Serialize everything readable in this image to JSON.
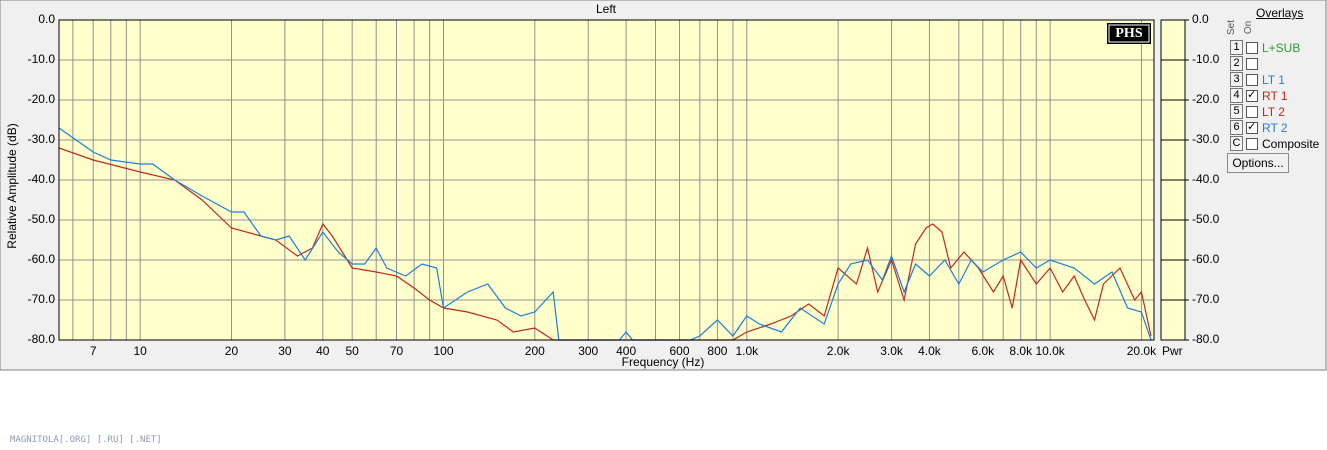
{
  "chart_data": {
    "type": "line",
    "title": "Left",
    "xlabel": "Frequency (Hz)",
    "ylabel": "Relative Amplitude (dB)",
    "xscale": "log",
    "xlim": [
      5.4,
      22000
    ],
    "ylim": [
      -80,
      0
    ],
    "grid": true,
    "xticks": [
      {
        "value": 6,
        "label": null
      },
      7,
      {
        "value": 8,
        "label": null
      },
      {
        "value": 9,
        "label": null
      },
      10,
      20,
      30,
      40,
      50,
      {
        "value": 60,
        "label": null
      },
      70,
      {
        "value": 80,
        "label": null
      },
      {
        "value": 90,
        "label": null
      },
      100,
      200,
      300,
      400,
      {
        "value": 500,
        "label": null
      },
      600,
      {
        "value": 700,
        "label": null
      },
      800,
      {
        "value": 900,
        "label": null
      },
      {
        "value": 1000,
        "label": "1.0k"
      },
      {
        "value": 2000,
        "label": "2.0k"
      },
      {
        "value": 3000,
        "label": "3.0k"
      },
      {
        "value": 4000,
        "label": "4.0k"
      },
      {
        "value": 5000,
        "label": null
      },
      {
        "value": 6000,
        "label": "6.0k"
      },
      {
        "value": 7000,
        "label": null
      },
      {
        "value": 8000,
        "label": "8.0k"
      },
      {
        "value": 9000,
        "label": null
      },
      {
        "value": 10000,
        "label": "10.0k"
      },
      {
        "value": 20000,
        "label": "20.0k"
      }
    ],
    "yticks": [
      {
        "value": 0,
        "label": "0.0"
      },
      {
        "value": -10,
        "label": "-10.0"
      },
      {
        "value": -20,
        "label": "-20.0"
      },
      {
        "value": -30,
        "label": "-30.0"
      },
      {
        "value": -40,
        "label": "-40.0"
      },
      {
        "value": -50,
        "label": "-50.0"
      },
      {
        "value": -60,
        "label": "-60.0"
      },
      {
        "value": -70,
        "label": "-70.0"
      },
      {
        "value": -80,
        "label": "-80.0"
      }
    ],
    "right_axis_label": "Pwr",
    "logo": "PHS",
    "series": [
      {
        "name": "RT 1",
        "color": "#c0281c",
        "x": [
          5.4,
          7,
          10,
          13,
          16,
          20,
          25,
          28,
          33,
          37,
          40,
          43,
          50,
          60,
          70,
          80,
          90,
          100,
          120,
          150,
          170,
          200,
          230,
          700,
          900,
          1000,
          1200,
          1400,
          1600,
          1800,
          2000,
          2300,
          2500,
          2700,
          3000,
          3300,
          3600,
          3900,
          4100,
          4400,
          4700,
          5200,
          5800,
          6500,
          7000,
          7500,
          8000,
          9000,
          10000,
          11000,
          12000,
          13000,
          14000,
          15000,
          17000,
          19000,
          20000,
          21500
        ],
        "values": [
          -32,
          -35,
          -38,
          -40,
          -45,
          -52,
          -54,
          -55,
          -59,
          -57,
          -51,
          -54,
          -62,
          -63,
          -64,
          -67,
          -70,
          -72,
          -73,
          -75,
          -78,
          -77,
          -80,
          -80,
          -80,
          -78,
          -76,
          -74,
          -71,
          -74,
          -62,
          -66,
          -57,
          -68,
          -60,
          -70,
          -56,
          -52,
          -51,
          -53,
          -62,
          -58,
          -62,
          -68,
          -64,
          -72,
          -60,
          -66,
          -62,
          -68,
          -64,
          -70,
          -75,
          -66,
          -62,
          -70,
          -68,
          -79
        ]
      },
      {
        "name": "RT 2",
        "color": "#1e7fd6",
        "x": [
          5.4,
          7,
          8,
          10,
          11,
          13,
          16,
          20,
          22,
          25,
          28,
          31,
          35,
          40,
          45,
          50,
          55,
          60,
          65,
          75,
          85,
          95,
          100,
          120,
          140,
          160,
          180,
          200,
          230,
          240,
          380,
          400,
          420,
          650,
          700,
          800,
          900,
          1000,
          1100,
          1300,
          1500,
          1800,
          2000,
          2200,
          2500,
          2800,
          3000,
          3300,
          3600,
          4000,
          4500,
          5000,
          5500,
          6000,
          7000,
          8000,
          9000,
          10000,
          12000,
          14000,
          16000,
          18000,
          20000,
          21500
        ],
        "values": [
          -27,
          -33,
          -35,
          -36,
          -36,
          -40,
          -44,
          -48,
          -48,
          -54,
          -55,
          -54,
          -60,
          -53,
          -58,
          -61,
          -61,
          -57,
          -62,
          -64,
          -61,
          -62,
          -72,
          -68,
          -66,
          -72,
          -74,
          -73,
          -68,
          -80,
          -80,
          -78,
          -80,
          -80,
          -79,
          -75,
          -79,
          -74,
          -76,
          -78,
          -72,
          -76,
          -66,
          -61,
          -60,
          -65,
          -59,
          -68,
          -61,
          -64,
          -60,
          -66,
          -60,
          -63,
          -60,
          -58,
          -62,
          -60,
          -62,
          -66,
          -63,
          -72,
          -73,
          -80
        ]
      }
    ]
  },
  "panel": {
    "title": "Overlays",
    "set_header": "Set",
    "on_header": "On",
    "button": "Options...",
    "rows": [
      {
        "set": "1",
        "label": "L+SUB",
        "color": "#2e9a2e",
        "checked": false
      },
      {
        "set": "2",
        "checked": false
      },
      {
        "set": "3",
        "label": "LT 1",
        "color": "#1e7fd6",
        "checked": false
      },
      {
        "set": "4",
        "checked": true
      },
      {
        "set": "5",
        "label": "LT 2",
        "color": "#c0281c",
        "checked": false
      },
      {
        "set": "6",
        "checked": true
      },
      {
        "set": "C",
        "label": "Composite",
        "color": "#000000",
        "checked": false
      }
    ]
  },
  "watermark": "MAGNITOLA[.ORG] [.RU] [.NET]"
}
